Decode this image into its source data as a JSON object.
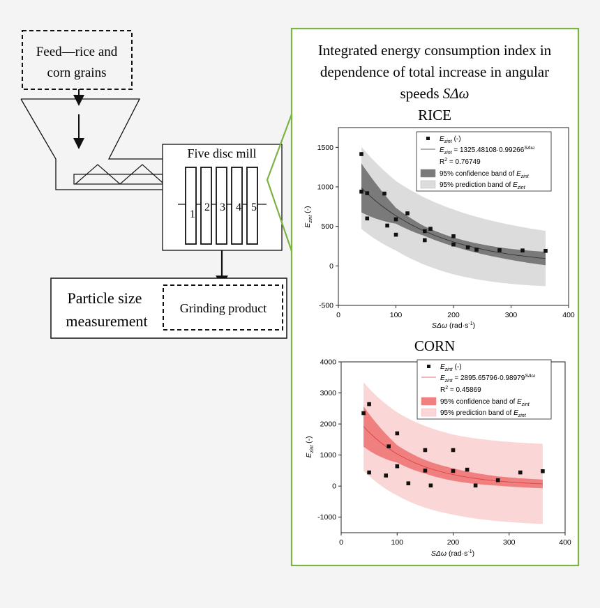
{
  "diagram": {
    "feed_line1": "Feed—rice and",
    "feed_line2": "corn grains",
    "mill_title": "Five disc mill",
    "disc_numbers": [
      "1",
      "2",
      "3",
      "4",
      "5"
    ],
    "psm_line1": "Particle size",
    "psm_line2": "measurement",
    "grinding_product": "Grinding product"
  },
  "panel": {
    "title_line1": "Integrated energy consumption index in",
    "title_line2": "dependence of total increase in angular",
    "title_line3_prefix": "speeds ",
    "title_line3_math": "SΔω",
    "border_color": "#7cb342"
  },
  "chart_data": [
    {
      "type": "scatter",
      "title": "RICE",
      "xlabel_math": "SΔω",
      "xlabel_unit": " (rad·s",
      "xlabel_sup": "-1",
      "xlabel_close": ")",
      "ylabel_main": "E",
      "ylabel_sub": "zint",
      "ylabel_unit": " (-)",
      "xlim": [
        0,
        400
      ],
      "ylim": [
        -500,
        1750
      ],
      "xticks": [
        "0",
        "100",
        "200",
        "300",
        "400"
      ],
      "yticks": [
        "-500",
        "0",
        "500",
        "1000",
        "1500"
      ],
      "xtick_values": [
        0,
        100,
        200,
        300,
        400
      ],
      "ytick_values": [
        -500,
        0,
        500,
        1000,
        1500
      ],
      "points": [
        [
          40,
          1415
        ],
        [
          40,
          940
        ],
        [
          50,
          920
        ],
        [
          50,
          600
        ],
        [
          80,
          915
        ],
        [
          85,
          510
        ],
        [
          100,
          590
        ],
        [
          100,
          395
        ],
        [
          120,
          665
        ],
        [
          150,
          440
        ],
        [
          150,
          325
        ],
        [
          160,
          470
        ],
        [
          200,
          375
        ],
        [
          200,
          270
        ],
        [
          225,
          235
        ],
        [
          240,
          205
        ],
        [
          280,
          200
        ],
        [
          320,
          195
        ],
        [
          360,
          190
        ]
      ],
      "fit": {
        "a": 1325.48108,
        "b": 0.99266,
        "x_from": 40,
        "x_to": 360
      },
      "conf_halfwidth": [
        [
          40,
          310
        ],
        [
          100,
          100
        ],
        [
          150,
          60
        ],
        [
          200,
          55
        ],
        [
          280,
          65
        ],
        [
          360,
          85
        ]
      ],
      "pred_halfwidth": [
        [
          40,
          520
        ],
        [
          100,
          440
        ],
        [
          200,
          410
        ],
        [
          360,
          350
        ]
      ],
      "colors": {
        "fit": "#333333",
        "conf": "#7a7a7a",
        "pred": "#dcdcdc",
        "point": "#111111"
      },
      "legend": {
        "series": "(-)",
        "fit_label": " = 1325.48108·0.99266",
        "fit_sup": "SΔω",
        "r2": "R",
        "r2_sup": "2",
        "r2_value": " = 0.76749",
        "conf": "95% confidence band of ",
        "pred": "95% prediction band of ",
        "e_main": "E",
        "e_sub": "zint"
      }
    },
    {
      "type": "scatter",
      "title": "CORN",
      "xlabel_math": "SΔω",
      "xlabel_unit": " (rad·s",
      "xlabel_sup": "-1",
      "xlabel_close": ")",
      "ylabel_main": "E",
      "ylabel_sub": "zint",
      "ylabel_unit": " (-)",
      "xlim": [
        0,
        400
      ],
      "ylim": [
        -1500,
        4000
      ],
      "xticks": [
        "0",
        "100",
        "200",
        "300",
        "400"
      ],
      "yticks": [
        "-1000",
        "0",
        "1000",
        "2000",
        "3000",
        "4000"
      ],
      "xtick_values": [
        0,
        100,
        200,
        300,
        400
      ],
      "ytick_values": [
        -1000,
        0,
        1000,
        2000,
        3000,
        4000
      ],
      "points": [
        [
          40,
          2350
        ],
        [
          50,
          2640
        ],
        [
          50,
          440
        ],
        [
          80,
          340
        ],
        [
          85,
          1280
        ],
        [
          100,
          1700
        ],
        [
          100,
          640
        ],
        [
          120,
          90
        ],
        [
          150,
          1160
        ],
        [
          150,
          500
        ],
        [
          160,
          20
        ],
        [
          200,
          1160
        ],
        [
          200,
          490
        ],
        [
          225,
          530
        ],
        [
          240,
          20
        ],
        [
          280,
          190
        ],
        [
          320,
          440
        ],
        [
          360,
          480
        ]
      ],
      "fit": {
        "a": 2895.65796,
        "b": 0.98979,
        "x_from": 40,
        "x_to": 360
      },
      "conf_halfwidth": [
        [
          40,
          650
        ],
        [
          100,
          280
        ],
        [
          150,
          220
        ],
        [
          200,
          200
        ],
        [
          280,
          150
        ],
        [
          360,
          140
        ]
      ],
      "pred_halfwidth": [
        [
          40,
          1420
        ],
        [
          100,
          1340
        ],
        [
          200,
          1290
        ],
        [
          360,
          1290
        ]
      ],
      "colors": {
        "fit": "#d44",
        "conf": "#f07f7f",
        "pred": "#fbd6d6",
        "point": "#111111"
      },
      "legend": {
        "series": "(-)",
        "fit_label": " = 2895.65796·0.98979",
        "fit_sup": "SΔω",
        "r2": "R",
        "r2_sup": "2",
        "r2_value": " = 0.45869",
        "conf": "95% confidence band of ",
        "pred": "95% prediction band of ",
        "e_main": "E",
        "e_sub": "zint"
      }
    }
  ]
}
